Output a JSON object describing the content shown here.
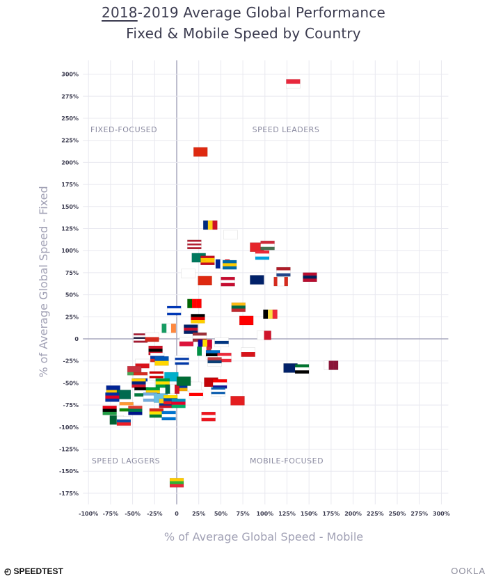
{
  "title": {
    "underlined": "2018",
    "line1_rest": "-2019 Average Global Performance",
    "line2": "Fixed & Mobile Speed by Country"
  },
  "brand": {
    "left": "SPEEDTEST",
    "right": "OOKLA"
  },
  "chart_data": {
    "type": "scatter",
    "marker": "country-flag",
    "xlabel": "% of Average Global Speed - Mobile",
    "ylabel": "% of Average Global Speed - Fixed",
    "xlim": [
      -100,
      300
    ],
    "ylim": [
      -175,
      300
    ],
    "x_ticks": [
      "-100%",
      "-75%",
      "-50%",
      "-25%",
      "0",
      "25%",
      "50%",
      "75%",
      "100%",
      "125%",
      "150%",
      "175%",
      "200%",
      "225%",
      "250%",
      "275%",
      "300%"
    ],
    "y_ticks": [
      "300%",
      "275%",
      "250%",
      "225%",
      "200%",
      "175%",
      "150%",
      "125%",
      "100%",
      "75%",
      "50%",
      "25%",
      "0",
      "-25%",
      "-50%",
      "-75%",
      "-100%",
      "-125%",
      "-150%",
      "-175%"
    ],
    "grid": true,
    "quadrant_labels": {
      "top_left": "FIXED-FOCUSED",
      "top_right": "SPEED LEADERS",
      "bottom_left": "SPEED LAGGERS",
      "bottom_right": "MOBILE-FOCUSED"
    },
    "points": [
      {
        "flag": "singapore",
        "x": 132,
        "y": 289
      },
      {
        "flag": "hong-kong",
        "x": 27,
        "y": 212
      },
      {
        "flag": "romania",
        "x": 38,
        "y": 129
      },
      {
        "flag": "south-korea",
        "x": 61,
        "y": 118
      },
      {
        "flag": "usa",
        "x": 20,
        "y": 107
      },
      {
        "flag": "switzerland",
        "x": 91,
        "y": 104
      },
      {
        "flag": "hungary",
        "x": 103,
        "y": 106
      },
      {
        "flag": "luxembourg",
        "x": 97,
        "y": 95
      },
      {
        "flag": "macau",
        "x": 25,
        "y": 92
      },
      {
        "flag": "spain",
        "x": 35,
        "y": 89
      },
      {
        "flag": "france",
        "x": 52,
        "y": 85
      },
      {
        "flag": "sweden",
        "x": 60,
        "y": 84
      },
      {
        "flag": "japan",
        "x": 13,
        "y": 74
      },
      {
        "flag": "netherlands",
        "x": 121,
        "y": 76
      },
      {
        "flag": "china",
        "x": 32,
        "y": 66
      },
      {
        "flag": "denmark",
        "x": 58,
        "y": 65
      },
      {
        "flag": "new-zealand",
        "x": 91,
        "y": 67
      },
      {
        "flag": "canada",
        "x": 118,
        "y": 65
      },
      {
        "flag": "norway",
        "x": 151,
        "y": 70
      },
      {
        "flag": "portugal",
        "x": 20,
        "y": 40
      },
      {
        "flag": "lithuania",
        "x": 70,
        "y": 36
      },
      {
        "flag": "israel",
        "x": -3,
        "y": 32
      },
      {
        "flag": "germany",
        "x": 24,
        "y": 23
      },
      {
        "flag": "belgium",
        "x": 106,
        "y": 28
      },
      {
        "flag": "taiwan",
        "x": 79,
        "y": 21
      },
      {
        "flag": "ireland",
        "x": -9,
        "y": 12
      },
      {
        "flag": "uk",
        "x": 16,
        "y": 11
      },
      {
        "flag": "malta",
        "x": 99,
        "y": 4
      },
      {
        "flag": "thailand",
        "x": -41,
        "y": 1
      },
      {
        "flag": "chile",
        "x": -28,
        "y": 2
      },
      {
        "flag": "poland",
        "x": 11,
        "y": -3
      },
      {
        "flag": "latvia",
        "x": 26,
        "y": 2
      },
      {
        "flag": "finland",
        "x": 51,
        "y": -4
      },
      {
        "flag": "andorra",
        "x": 32,
        "y": -6
      },
      {
        "flag": "italy",
        "x": 31,
        "y": -14
      },
      {
        "flag": "estonia",
        "x": 41,
        "y": -18
      },
      {
        "flag": "austria",
        "x": 54,
        "y": -21
      },
      {
        "flag": "czechia",
        "x": 81,
        "y": -15
      },
      {
        "flag": "serbia",
        "x": 43,
        "y": -26
      },
      {
        "flag": "trinidad",
        "x": -24,
        "y": -13
      },
      {
        "flag": "russia",
        "x": -22,
        "y": -21
      },
      {
        "flag": "ukraine",
        "x": -17,
        "y": -25
      },
      {
        "flag": "uruguay",
        "x": 6,
        "y": -24
      },
      {
        "flag": "panama",
        "x": -39,
        "y": -28
      },
      {
        "flag": "australia",
        "x": 129,
        "y": -33
      },
      {
        "flag": "uae",
        "x": 142,
        "y": -34
      },
      {
        "flag": "qatar",
        "x": 175,
        "y": -30
      },
      {
        "flag": "belarus",
        "x": -48,
        "y": -36
      },
      {
        "flag": "paraguay",
        "x": -41,
        "y": -43
      },
      {
        "flag": "malaysia",
        "x": -23,
        "y": -42
      },
      {
        "flag": "kazakhstan",
        "x": -6,
        "y": -43
      },
      {
        "flag": "brazil",
        "x": -16,
        "y": -50
      },
      {
        "flag": "montenegro",
        "x": 39,
        "y": -49
      },
      {
        "flag": "croatia",
        "x": 49,
        "y": -51
      },
      {
        "flag": "armenia",
        "x": 9,
        "y": -54
      },
      {
        "flag": "cyprus",
        "x": 20,
        "y": -54
      },
      {
        "flag": "georgia",
        "x": 22,
        "y": -63
      },
      {
        "flag": "greece",
        "x": 47,
        "y": -60
      },
      {
        "flag": "albania",
        "x": 69,
        "y": -70
      },
      {
        "flag": "lebanon",
        "x": 36,
        "y": -88
      },
      {
        "flag": "venezuela",
        "x": -43,
        "y": -50
      },
      {
        "flag": "bosnia",
        "x": -72,
        "y": -58
      },
      {
        "flag": "bangladesh",
        "x": -60,
        "y": -63
      },
      {
        "flag": "cambodia",
        "x": -73,
        "y": -66
      },
      {
        "flag": "libya",
        "x": -76,
        "y": -81
      },
      {
        "flag": "algeria",
        "x": -68,
        "y": -92
      },
      {
        "flag": "slovakia",
        "x": -60,
        "y": -93
      },
      {
        "flag": "india",
        "x": -57,
        "y": -77
      },
      {
        "flag": "south-africa",
        "x": -47,
        "y": -81
      },
      {
        "flag": "jordan",
        "x": -40,
        "y": -60
      },
      {
        "flag": "jamaica",
        "x": -27,
        "y": -60
      },
      {
        "flag": "argentina",
        "x": -30,
        "y": -66
      },
      {
        "flag": "fiji",
        "x": -18,
        "y": -67
      },
      {
        "flag": "colombia",
        "x": -12,
        "y": -73
      },
      {
        "flag": "bolivia",
        "x": -23,
        "y": -84
      },
      {
        "flag": "honduras",
        "x": -9,
        "y": -87
      },
      {
        "flag": "ecuador",
        "x": -7,
        "y": -69
      },
      {
        "flag": "azerbaijan",
        "x": 2,
        "y": -73
      },
      {
        "flag": "mexico",
        "x": -5,
        "y": -57
      },
      {
        "flag": "saudi-arabia",
        "x": 8,
        "y": -48
      },
      {
        "flag": "myanmar",
        "x": 0,
        "y": -163
      }
    ]
  }
}
